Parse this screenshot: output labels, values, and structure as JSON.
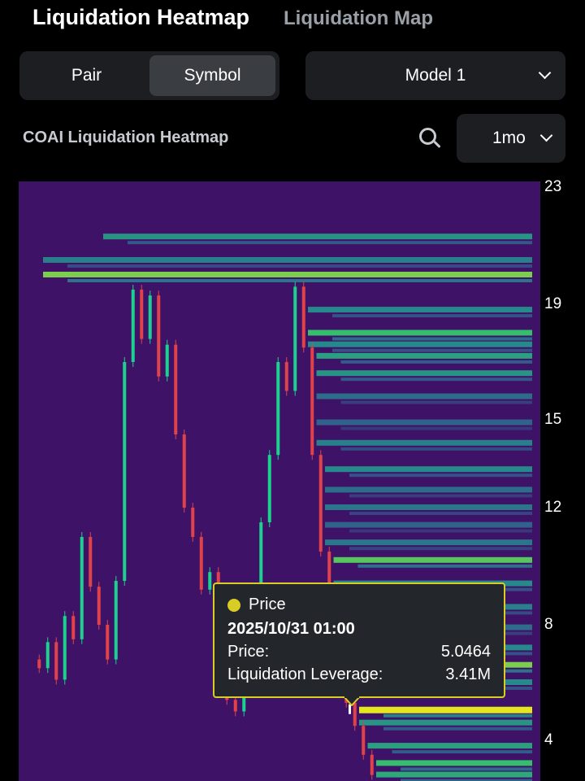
{
  "header": {
    "tab_heatmap": "Liquidation Heatmap",
    "tab_map": "Liquidation Map"
  },
  "controls": {
    "seg_pair": "Pair",
    "seg_symbol": "Symbol",
    "seg_selected": "Symbol",
    "model": "Model 1",
    "period": "1mo"
  },
  "chart_title": "COAI Liquidation Heatmap",
  "icons": {
    "search": "search-icon",
    "dropdown": "chevron-down-icon",
    "legend_dot": "dot-icon"
  },
  "colors": {
    "background": "#000000",
    "heat_low": "#3e1266",
    "heat_high": "#e6e61e",
    "up_candle": "#1dd08f",
    "down_candle": "#e0424b",
    "tooltip_border": "#d7cd24"
  },
  "tooltip": {
    "series": "Price",
    "time": "2025/10/31 01:00",
    "price_label": "Price:",
    "price_value": "5.0464",
    "leverage_label": "Liquidation Leverage:",
    "leverage_value": "3.41M"
  },
  "chart_data": {
    "type": "heatmap",
    "title": "COAI Liquidation Heatmap",
    "y_ticks": [
      "23",
      "19",
      "15",
      "12",
      "8",
      "4"
    ],
    "y_tick_values": [
      23,
      19,
      15,
      12,
      8,
      4
    ],
    "ylim": [
      2.6,
      23.2
    ],
    "price_path": [
      6.8,
      6.5,
      7.4,
      6.1,
      8.3,
      7.5,
      11.0,
      9.3,
      8.0,
      6.8,
      9.5,
      17.0,
      19.5,
      17.8,
      19.3,
      16.5,
      17.6,
      14.5,
      12.0,
      11.0,
      9.2,
      9.8,
      7.5,
      5.4,
      5.0,
      6.7,
      8.0,
      11.5,
      13.8,
      17.0,
      16.0,
      19.6,
      17.5,
      13.8,
      10.5,
      8.0,
      6.8,
      5.3,
      4.5,
      3.5,
      2.8
    ],
    "liquidation_levels": [
      {
        "price": 21.3,
        "intensity": 0.55
      },
      {
        "price": 20.5,
        "intensity": 0.45
      },
      {
        "price": 20.0,
        "intensity": 0.85
      },
      {
        "price": 18.8,
        "intensity": 0.5
      },
      {
        "price": 18.0,
        "intensity": 0.75
      },
      {
        "price": 17.6,
        "intensity": 0.5
      },
      {
        "price": 17.2,
        "intensity": 0.6
      },
      {
        "price": 16.6,
        "intensity": 0.55
      },
      {
        "price": 15.8,
        "intensity": 0.35
      },
      {
        "price": 14.9,
        "intensity": 0.3
      },
      {
        "price": 14.2,
        "intensity": 0.45
      },
      {
        "price": 13.3,
        "intensity": 0.5
      },
      {
        "price": 12.6,
        "intensity": 0.35
      },
      {
        "price": 12.0,
        "intensity": 0.4
      },
      {
        "price": 11.4,
        "intensity": 0.3
      },
      {
        "price": 10.8,
        "intensity": 0.4
      },
      {
        "price": 10.2,
        "intensity": 0.8
      },
      {
        "price": 9.4,
        "intensity": 0.5
      },
      {
        "price": 8.6,
        "intensity": 0.45
      },
      {
        "price": 7.9,
        "intensity": 0.35
      },
      {
        "price": 7.2,
        "intensity": 0.5
      },
      {
        "price": 6.6,
        "intensity": 0.85
      },
      {
        "price": 6.0,
        "intensity": 0.5
      },
      {
        "price": 5.05,
        "intensity": 1.0
      },
      {
        "price": 4.6,
        "intensity": 0.55
      },
      {
        "price": 3.8,
        "intensity": 0.6
      },
      {
        "price": 3.2,
        "intensity": 0.75
      },
      {
        "price": 2.8,
        "intensity": 0.65
      }
    ]
  }
}
